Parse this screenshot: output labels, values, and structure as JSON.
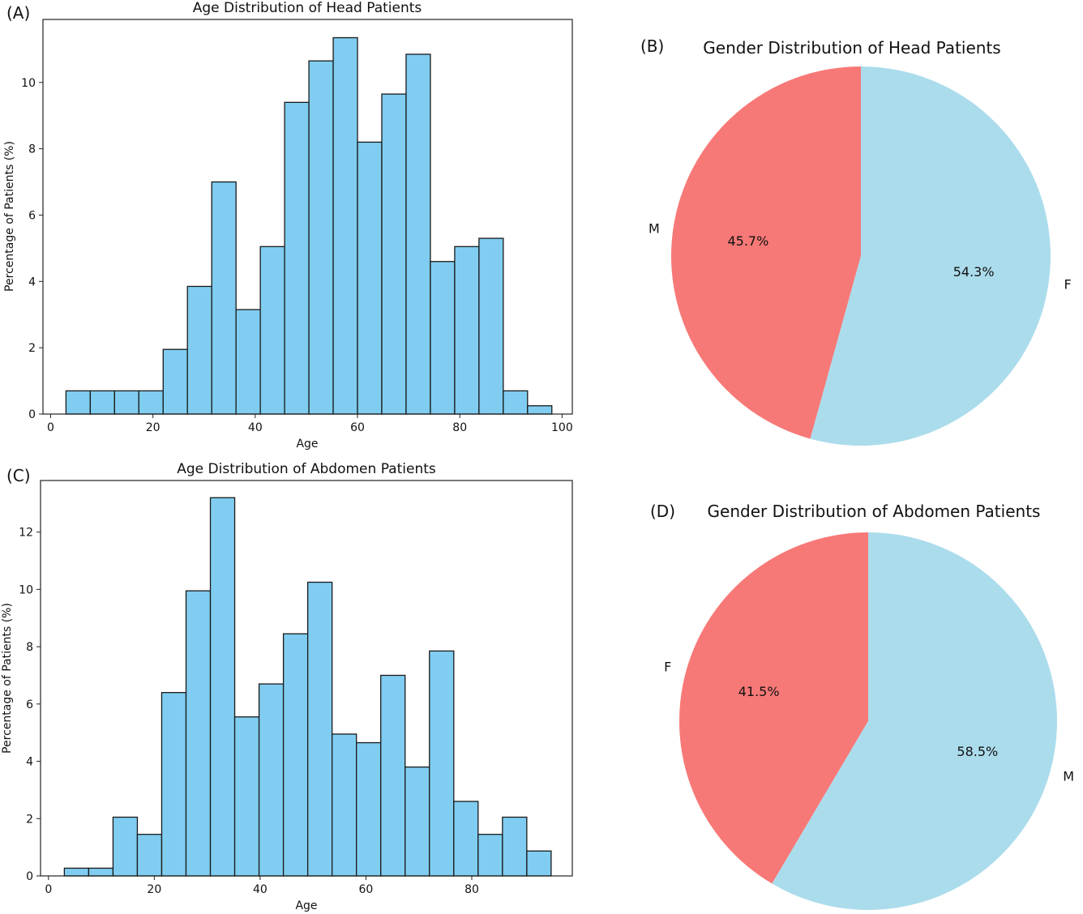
{
  "panels": {
    "a": "(A)",
    "b": "(B)",
    "c": "(C)",
    "d": "(D)"
  },
  "colors": {
    "bar": "#80cdf1",
    "bar_edge": "#1a1a1a",
    "pie_red": "#f77977",
    "pie_blue": "#abdcec"
  },
  "chart_data": [
    {
      "type": "bar",
      "title": "Age Distribution of Head Patients",
      "xlabel": "Age",
      "ylabel": "Percentage of Patients (%)",
      "xlim": [
        -1.5,
        102
      ],
      "ylim": [
        0,
        11.9
      ],
      "xticks": [
        0,
        20,
        40,
        60,
        80,
        100
      ],
      "yticks": [
        0,
        2,
        4,
        6,
        8,
        10
      ],
      "bin_edges": [
        3,
        7.75,
        12.5,
        17.25,
        22,
        26.75,
        31.5,
        36.25,
        41,
        45.75,
        50.5,
        55.25,
        60,
        64.75,
        69.5,
        74.25,
        79,
        83.75,
        88.5,
        93.25,
        98
      ],
      "values": [
        0.7,
        0.7,
        0.7,
        0.7,
        1.95,
        3.85,
        7.0,
        3.15,
        5.05,
        9.4,
        10.65,
        11.35,
        8.2,
        9.65,
        10.85,
        4.6,
        5.05,
        5.3,
        0.7,
        0.25
      ]
    },
    {
      "type": "pie",
      "title": "Gender Distribution of Head Patients",
      "slices": [
        {
          "label": "M",
          "value": 45.7,
          "autopct": "45.7%",
          "color": "#f77977"
        },
        {
          "label": "F",
          "value": 54.3,
          "autopct": "54.3%",
          "color": "#abdcec"
        }
      ]
    },
    {
      "type": "bar",
      "title": "Age Distribution of Abdomen Patients",
      "xlabel": "Age",
      "ylabel": "Percentage of Patients (%)",
      "xlim": [
        -1.5,
        99
      ],
      "ylim": [
        0,
        13.8
      ],
      "xticks": [
        0,
        20,
        40,
        60,
        80
      ],
      "yticks": [
        0,
        2,
        4,
        6,
        8,
        10,
        12
      ],
      "bin_edges": [
        3,
        7.6,
        12.2,
        16.8,
        21.4,
        26,
        30.6,
        35.2,
        39.8,
        44.4,
        49,
        53.6,
        58.2,
        62.8,
        67.4,
        72,
        76.6,
        81.2,
        85.8,
        90.4,
        95
      ],
      "values": [
        0.27,
        0.27,
        2.05,
        1.45,
        6.4,
        9.95,
        13.2,
        5.55,
        6.7,
        8.45,
        10.25,
        4.95,
        4.65,
        7.0,
        3.8,
        7.85,
        2.6,
        1.45,
        2.05,
        0.87
      ]
    },
    {
      "type": "pie",
      "title": "Gender Distribution of Abdomen Patients",
      "slices": [
        {
          "label": "F",
          "value": 41.5,
          "autopct": "41.5%",
          "color": "#f77977"
        },
        {
          "label": "M",
          "value": 58.5,
          "autopct": "58.5%",
          "color": "#abdcec"
        }
      ]
    }
  ]
}
